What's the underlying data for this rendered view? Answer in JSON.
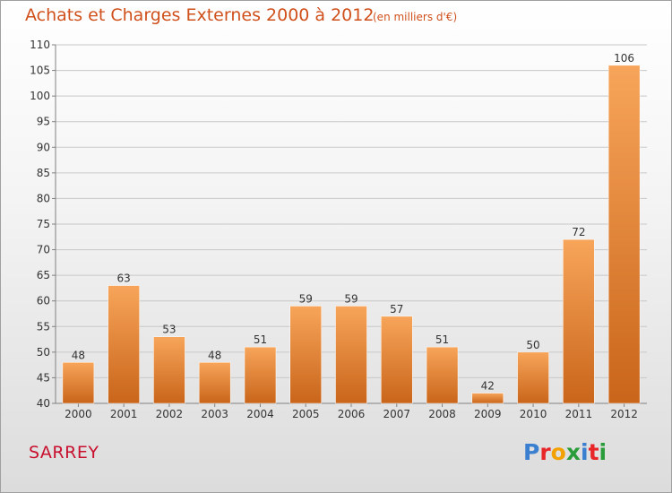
{
  "header": {
    "title": "Achats et Charges Externes 2000 à 2012",
    "subtitle": "(en milliers d'€)"
  },
  "footer": {
    "commune": "SARREY",
    "logo_letters": [
      "P",
      "r",
      "o",
      "x",
      "i",
      "t",
      "i"
    ],
    "logo_colors": [
      "#3a7fd0",
      "#e8262a",
      "#f3a100",
      "#2a9d3a",
      "#3a7fd0",
      "#e8262a",
      "#2a9d3a"
    ]
  },
  "chart_data": {
    "type": "bar",
    "categories": [
      "2000",
      "2001",
      "2002",
      "2003",
      "2004",
      "2005",
      "2006",
      "2007",
      "2008",
      "2009",
      "2010",
      "2011",
      "2012"
    ],
    "values": [
      48,
      63,
      53,
      48,
      51,
      59,
      59,
      57,
      51,
      42,
      50,
      72,
      106
    ],
    "ylim": [
      40,
      110
    ],
    "yticks": [
      40,
      45,
      50,
      55,
      60,
      65,
      70,
      75,
      80,
      85,
      90,
      95,
      100,
      105,
      110
    ],
    "grid": true,
    "colors": {
      "bar_top": "#f7a55a",
      "bar_bottom": "#c9651a",
      "grid": "#c8c8c8",
      "axis": "#808080"
    }
  }
}
